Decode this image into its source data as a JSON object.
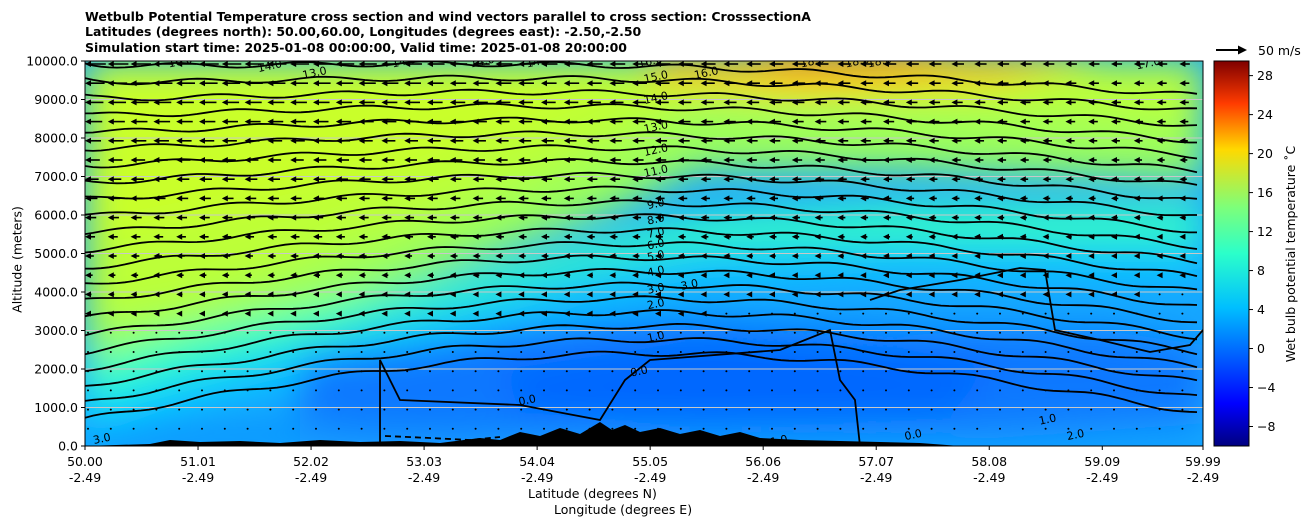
{
  "title": {
    "line1": "Wetbulb Potential Temperature cross section and wind vectors parallel to cross section: CrosssectionA",
    "line2": "Latitudes (degrees north): 50.00,60.00, Longitudes (degrees east): -2.50,-2.50",
    "line3": "Simulation start time: 2025-01-08 00:00:00, Valid time: 2025-01-08 20:00:00"
  },
  "chart_data": {
    "type": "heatmap",
    "ylabel": "Altitude (meters)",
    "xlabel_lat": "Latitude (degrees N)",
    "xlabel_lon": "Longitude (degrees E)",
    "ylim": [
      0,
      10000
    ],
    "xlim": [
      50.0,
      59.99
    ],
    "y_ticks": [
      "0.0",
      "1000.0",
      "2000.0",
      "3000.0",
      "4000.0",
      "5000.0",
      "6000.0",
      "7000.0",
      "8000.0",
      "9000.0",
      "10000.0"
    ],
    "y_tick_values": [
      0,
      1000,
      2000,
      3000,
      4000,
      5000,
      6000,
      7000,
      8000,
      9000,
      10000
    ],
    "x_ticks_lat": [
      "50.00",
      "51.01",
      "52.02",
      "53.03",
      "54.04",
      "55.05",
      "56.06",
      "57.07",
      "58.08",
      "59.09",
      "59.99"
    ],
    "x_tick_values": [
      50.0,
      51.01,
      52.02,
      53.03,
      54.04,
      55.05,
      56.06,
      57.07,
      58.08,
      59.09,
      59.99
    ],
    "x_ticks_lon": [
      "-2.49",
      "-2.49",
      "-2.49",
      "-2.49",
      "-2.49",
      "-2.49",
      "-2.49",
      "-2.49",
      "-2.49",
      "-2.49",
      "-2.49"
    ],
    "grid": "horizontal",
    "colorbar": {
      "label": "Wet bulb potential temperature ˚C",
      "ticks": [
        "−8",
        "−4",
        "0",
        "4",
        "8",
        "12",
        "16",
        "20",
        "24",
        "28"
      ],
      "tick_values": [
        -8,
        -4,
        0,
        4,
        8,
        12,
        16,
        20,
        24,
        28
      ],
      "range": [
        -10,
        29.5
      ],
      "colormap": "jet"
    },
    "quiver_key": {
      "label": "50 m/s",
      "speed": 50
    },
    "contour_labels": [
      {
        "text": "14.0",
        "lat": 51.65,
        "alt": 9880
      },
      {
        "text": "13.0",
        "lat": 52.05,
        "alt": 9700
      },
      {
        "text": "16.0",
        "lat": 50.85,
        "alt": 10000
      },
      {
        "text": "14.0",
        "lat": 52.85,
        "alt": 10000
      },
      {
        "text": "14.0",
        "lat": 53.55,
        "alt": 10000
      },
      {
        "text": "14.0",
        "lat": 54.05,
        "alt": 10000
      },
      {
        "text": "16.0",
        "lat": 55.05,
        "alt": 10000
      },
      {
        "text": "15.0",
        "lat": 55.1,
        "alt": 9600
      },
      {
        "text": "16.0",
        "lat": 55.55,
        "alt": 9700
      },
      {
        "text": "14.0",
        "lat": 55.1,
        "alt": 9050
      },
      {
        "text": "13.0",
        "lat": 55.1,
        "alt": 8300
      },
      {
        "text": "12.0",
        "lat": 55.1,
        "alt": 7700
      },
      {
        "text": "11.0",
        "lat": 55.1,
        "alt": 7150
      },
      {
        "text": "9.0",
        "lat": 55.1,
        "alt": 6300
      },
      {
        "text": "8.0",
        "lat": 55.1,
        "alt": 5900
      },
      {
        "text": "7.0",
        "lat": 55.1,
        "alt": 5550
      },
      {
        "text": "6.0",
        "lat": 55.1,
        "alt": 5250
      },
      {
        "text": "5.0",
        "lat": 55.1,
        "alt": 4950
      },
      {
        "text": "4.0",
        "lat": 55.1,
        "alt": 4550
      },
      {
        "text": "3.0",
        "lat": 55.1,
        "alt": 4100
      },
      {
        "text": "3.0",
        "lat": 55.4,
        "alt": 4200
      },
      {
        "text": "2.0",
        "lat": 55.1,
        "alt": 3700
      },
      {
        "text": "1.0",
        "lat": 55.1,
        "alt": 2850
      },
      {
        "text": "0.0",
        "lat": 54.95,
        "alt": 1950
      },
      {
        "text": "0.0",
        "lat": 53.95,
        "alt": 1200
      },
      {
        "text": "18.0",
        "lat": 56.5,
        "alt": 10000
      },
      {
        "text": "18.0",
        "lat": 56.9,
        "alt": 10000
      },
      {
        "text": "18.0",
        "lat": 57.1,
        "alt": 10000
      },
      {
        "text": "17.0",
        "lat": 59.5,
        "alt": 9950
      },
      {
        "text": "1.0",
        "lat": 58.6,
        "alt": 700
      },
      {
        "text": "2.0",
        "lat": 58.85,
        "alt": 300
      },
      {
        "text": "3.0",
        "lat": 50.15,
        "alt": 200
      },
      {
        "text": "1.0",
        "lat": 56.2,
        "alt": 150
      },
      {
        "text": "0.0",
        "lat": 57.4,
        "alt": 300
      }
    ]
  }
}
